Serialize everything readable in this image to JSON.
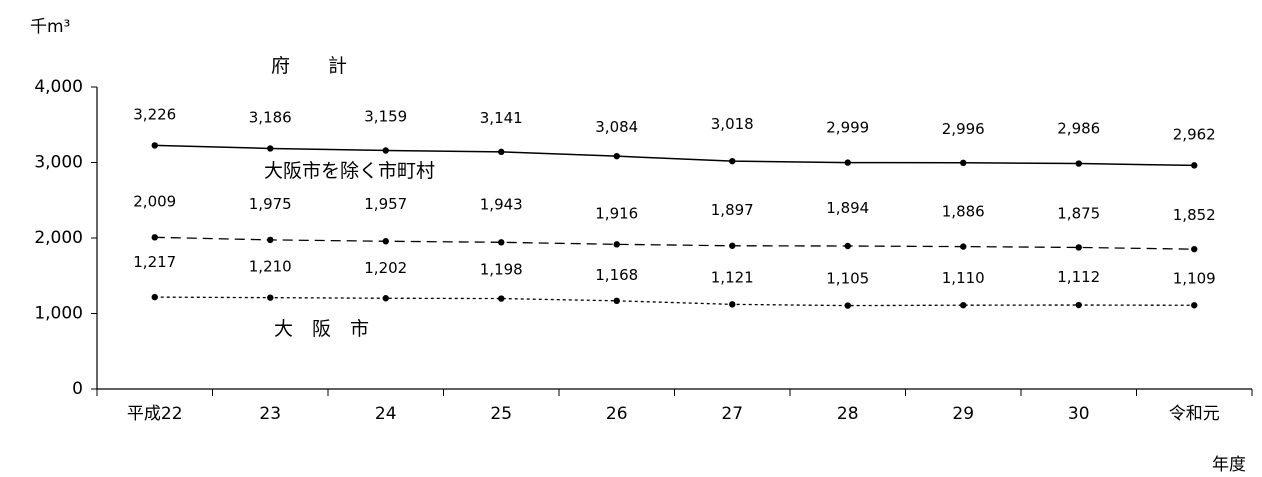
{
  "chart_data": {
    "type": "line",
    "yunit": "千m³",
    "xlabel": "年度",
    "categories": [
      "平成22",
      "23",
      "24",
      "25",
      "26",
      "27",
      "28",
      "29",
      "30",
      "令和元"
    ],
    "ylim": [
      0,
      4000
    ],
    "yticks": [
      "0",
      "1,000",
      "2,000",
      "3,000",
      "4,000"
    ],
    "ytick_values": [
      0,
      1000,
      2000,
      3000,
      4000
    ],
    "grid": false,
    "series": [
      {
        "name": "府　　計",
        "values": [
          3226,
          3186,
          3159,
          3141,
          3084,
          3018,
          2999,
          2996,
          2986,
          2962
        ],
        "labels": [
          "3,226",
          "3,186",
          "3,159",
          "3,141",
          "3,084",
          "3,018",
          "2,999",
          "2,996",
          "2,986",
          "2,962"
        ],
        "style": "solid"
      },
      {
        "name": "大阪市を除く市町村",
        "values": [
          2009,
          1975,
          1957,
          1943,
          1916,
          1897,
          1894,
          1886,
          1875,
          1852
        ],
        "labels": [
          "2,009",
          "1,975",
          "1,957",
          "1,943",
          "1,916",
          "1,897",
          "1,894",
          "1,886",
          "1,875",
          "1,852"
        ],
        "style": "dashed"
      },
      {
        "name": "大　阪　市",
        "values": [
          1217,
          1210,
          1202,
          1198,
          1168,
          1121,
          1105,
          1110,
          1112,
          1109
        ],
        "labels": [
          "1,217",
          "1,210",
          "1,202",
          "1,198",
          "1,168",
          "1,121",
          "1,105",
          "1,110",
          "1,112",
          "1,109"
        ],
        "style": "dotted"
      }
    ],
    "line_color": "#000000"
  }
}
